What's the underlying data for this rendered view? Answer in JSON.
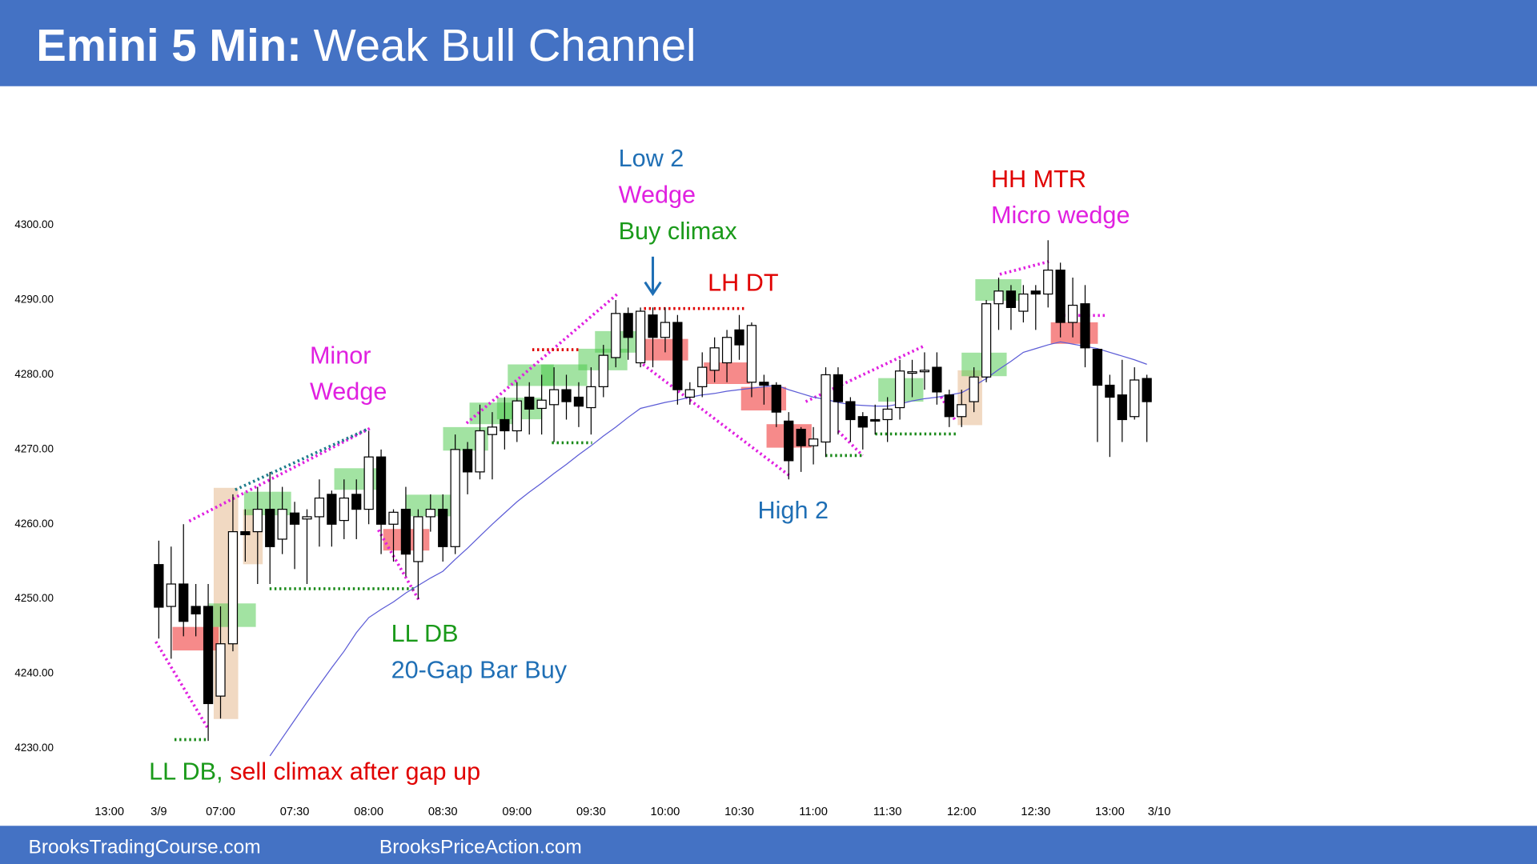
{
  "chart_data": {
    "type": "candlestick",
    "title_prefix": "Emini 5 Min:",
    "title": "Weak Bull Channel",
    "footer": [
      "BrooksTradingCourse.com",
      "BrooksPriceAction.com"
    ],
    "categories": [
      "13:00",
      null,
      null,
      null,
      "3/9",
      null,
      null,
      null,
      null,
      "07:00",
      null,
      null,
      null,
      null,
      null,
      "07:30",
      null,
      null,
      null,
      null,
      null,
      "08:00",
      null,
      null,
      null,
      null,
      null,
      "08:30",
      null,
      null,
      null,
      null,
      null,
      "09:00",
      null,
      null,
      null,
      null,
      null,
      "09:30",
      null,
      null,
      null,
      null,
      null,
      "10:00",
      null,
      null,
      null,
      null,
      null,
      "10:30",
      null,
      null,
      null,
      null,
      null,
      "11:00",
      null,
      null,
      null,
      null,
      null,
      "11:30",
      null,
      null,
      null,
      null,
      null,
      "12:00",
      null,
      null,
      null,
      null,
      null,
      "12:30",
      null,
      null,
      null,
      null,
      null,
      "13:00",
      null,
      null,
      null,
      "3/10"
    ],
    "open": [
      null,
      null,
      null,
      null,
      4254.6,
      4249,
      4252,
      4249,
      4249,
      4237,
      4244,
      4259,
      4259,
      4262,
      4258,
      4261.5,
      4260.7,
      4261,
      4264,
      4260.5,
      4264,
      4262,
      4269,
      4260,
      4262,
      4255,
      4261,
      4262,
      4257,
      4270,
      4267,
      4272,
      4274,
      4272.5,
      4277,
      4275.5,
      4276,
      4278,
      4277,
      4275.6,
      4278.4,
      4282.3,
      4288.2,
      4281.6,
      4288,
      4285,
      4287,
      4277,
      4278.4,
      4280.6,
      4281.6,
      4286,
      4279,
      4279,
      4278.6,
      4273.8,
      4272.7,
      4270.5,
      4271,
      4280,
      4276.4,
      4274.4,
      4274,
      4274,
      4275.6,
      4280.2,
      4280.4,
      4281,
      4277.3,
      4274.4,
      4276.4,
      4279.7,
      4289.5,
      4291.2,
      4288.5,
      4291.2,
      4290.8,
      4294,
      4287,
      4289.5,
      4283.4,
      4278.6,
      4277.3,
      4274.4,
      4279.5,
      null
    ],
    "high": [
      null,
      null,
      null,
      null,
      4257.8,
      4257,
      4260,
      4252,
      4252,
      4249,
      4264,
      4262,
      4265,
      4267,
      4265,
      4263,
      4262,
      4266,
      4264.5,
      4266,
      4266,
      4272.5,
      4270,
      4262,
      4265,
      4262,
      4264,
      4264,
      4272,
      4271,
      4276,
      4275,
      4277,
      4279,
      4279,
      4280,
      4281,
      4280,
      4279,
      4281,
      4284,
      4290,
      4289,
      4289,
      4289,
      4289,
      4288,
      4279,
      4283,
      4285,
      4286,
      4288,
      4287,
      4280,
      4279,
      4275,
      4273,
      4273,
      4281,
      4281,
      4277,
      4275,
      4276,
      4277,
      4282,
      4282,
      4283,
      4283,
      4278,
      4278,
      4281,
      4290,
      4293,
      4292,
      4292,
      4292,
      4298,
      4295,
      4293,
      4292,
      4283.5,
      4280,
      4282,
      4281,
      4280,
      null
    ],
    "low": [
      null,
      null,
      null,
      null,
      4244.7,
      4242,
      4245,
      4245,
      4231,
      4234,
      4243,
      4255,
      4252,
      4252,
      4256,
      4254,
      4252,
      4257,
      4257,
      4258,
      4258,
      4260,
      4256,
      4255,
      4253,
      4250,
      4259,
      4255,
      4256,
      4264,
      4266,
      4266,
      4270,
      4271,
      4272,
      4272,
      4271,
      4274,
      4273,
      4272,
      4277,
      4281,
      4282,
      4281,
      4281,
      4283,
      4276,
      4276,
      4277,
      4279,
      4279,
      4282,
      4277,
      4276,
      4273,
      4266,
      4267,
      4268,
      4269,
      4272,
      4271,
      4270,
      4272,
      4271,
      4274,
      4277,
      4278,
      4276,
      4273,
      4273,
      4275,
      4279,
      4286,
      4286,
      4287,
      4286,
      4289,
      4285,
      4285,
      4281,
      4271,
      4269,
      4271,
      4274,
      4271,
      null
    ],
    "close": [
      null,
      null,
      null,
      null,
      4248.9,
      4252,
      4247,
      4248,
      4236,
      4244,
      4259,
      4258.6,
      4262,
      4257,
      4262,
      4260,
      4261,
      4263.5,
      4260,
      4263.5,
      4262,
      4269,
      4260,
      4261.6,
      4256,
      4261,
      4262,
      4257,
      4270,
      4267,
      4272.5,
      4273,
      4272.5,
      4276.5,
      4275.4,
      4276.6,
      4278,
      4276.4,
      4275.8,
      4278.4,
      4282.6,
      4288.2,
      4285,
      4288.5,
      4285,
      4287,
      4278,
      4278,
      4281,
      4283.6,
      4285,
      4284,
      4286.6,
      4278.6,
      4275,
      4268.5,
      4270.5,
      4271.4,
      4280,
      4276.4,
      4274,
      4273,
      4273.8,
      4275.4,
      4280.5,
      4280.4,
      4280.6,
      4277.7,
      4274.4,
      4276,
      4279.7,
      4289.5,
      4291.2,
      4289,
      4290.8,
      4290.8,
      4294,
      4287,
      4289.3,
      4283.6,
      4278.6,
      4277,
      4274,
      4279.3,
      4276.4,
      null
    ],
    "up_color": "#ffffff",
    "down_color": "#000000",
    "ma": {
      "color": "#5b5bd6",
      "values": [
        null,
        null,
        null,
        null,
        null,
        null,
        null,
        null,
        null,
        null,
        null,
        null,
        null,
        4229,
        4231.4,
        4233.8,
        4236.2,
        4238.5,
        4240.8,
        4243,
        4245.5,
        4247.5,
        4248.6,
        4249.6,
        4250.8,
        4251.8,
        4252.8,
        4253.7,
        4255.3,
        4256.8,
        4258.4,
        4260,
        4261.5,
        4263,
        4264.3,
        4265.5,
        4266.8,
        4268,
        4269.3,
        4270.5,
        4271.8,
        4273,
        4274.3,
        4275.5,
        4275.9,
        4276.3,
        4276.6,
        4277,
        4277.3,
        4277.5,
        4277.8,
        4278,
        4278.2,
        4278.4,
        4278.6,
        4278,
        4277.5,
        4277,
        4276.7,
        4276.3,
        4276,
        4275.9,
        4275.8,
        4275.8,
        4276.1,
        4276.5,
        4276.8,
        4277,
        4277.3,
        4277.6,
        4278.5,
        4279.5,
        4280.7,
        4281.8,
        4283,
        4283.5,
        4284,
        4284.4,
        4284.1,
        4283.8,
        4283.5,
        4283,
        4282.5,
        4282,
        4281.4,
        null
      ]
    },
    "ylim": [
      4226,
      4316
    ],
    "yticks": [
      {
        "value": 4230,
        "label": "4230.00"
      },
      {
        "value": 4240,
        "label": "4240.00"
      },
      {
        "value": 4250,
        "label": "4250.00"
      },
      {
        "value": 4260,
        "label": "4260.00"
      },
      {
        "value": 4270,
        "label": "4270.00"
      },
      {
        "value": 4280,
        "label": "4280.00"
      },
      {
        "value": 4290,
        "label": "4290.00"
      },
      {
        "value": 4300,
        "label": "4300.00"
      }
    ],
    "grid": false,
    "annotations": [
      {
        "text": "Low 2",
        "color": "#1f6fb5"
      },
      {
        "text": "Wedge",
        "color": "#e020e0"
      },
      {
        "text": "Buy climax",
        "color": "#1a9a1a"
      },
      {
        "text": "LH DT",
        "color": "#e00000"
      },
      {
        "text": "HH MTR",
        "color": "#e00000"
      },
      {
        "text": "Micro wedge",
        "color": "#e020e0"
      },
      {
        "text": "Minor",
        "color": "#e020e0"
      },
      {
        "text": "Wedge",
        "color": "#e020e0"
      },
      {
        "text": "High 2",
        "color": "#1f6fb5"
      },
      {
        "text": "LL DB",
        "color": "#1a9a1a"
      },
      {
        "text": "20-Gap Bar Buy",
        "color": "#1f6fb5"
      },
      {
        "text": "LL DB,",
        "color": "#1a9a1a"
      },
      {
        "text": " sell climax after gap up",
        "color": "#e00000"
      }
    ]
  }
}
